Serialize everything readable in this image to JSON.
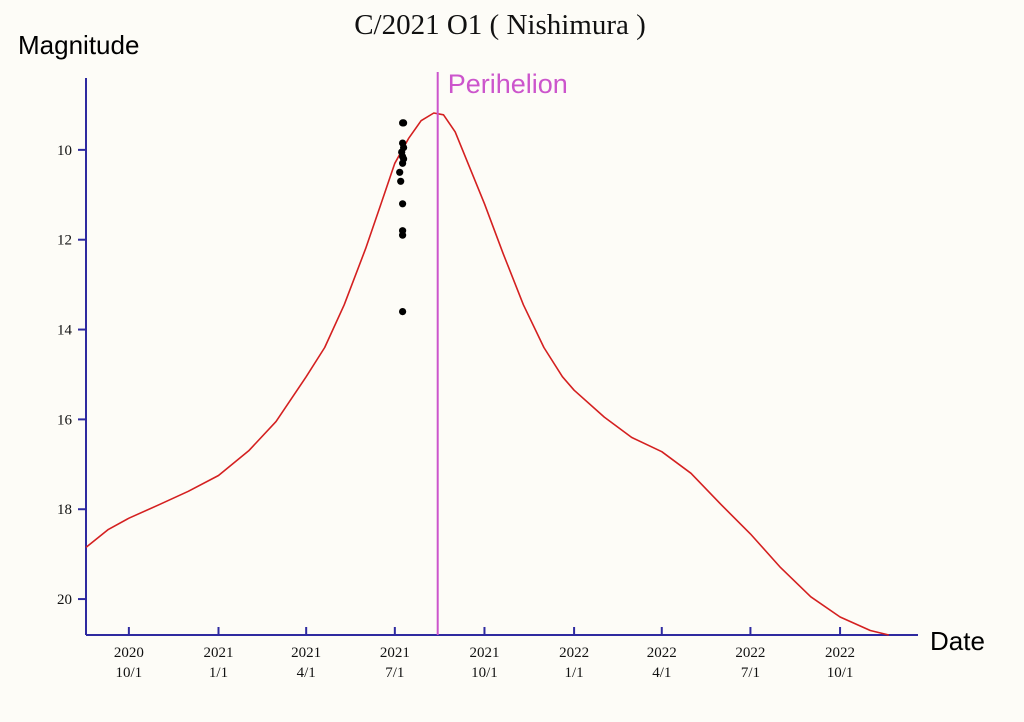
{
  "chart_data": {
    "type": "line",
    "title": "C/2021 O1 ( Nishimura )",
    "ylabel": "Magnitude",
    "xlabel": "Date",
    "y_inverted": true,
    "ylim": [
      8.4,
      20.8
    ],
    "yticks": [
      10,
      12,
      14,
      16,
      18,
      20
    ],
    "xlim": [
      "2020-08-18",
      "2022-12-20"
    ],
    "xticks": [
      {
        "date": "2020-10-01",
        "line1": "2020",
        "line2": "10/1"
      },
      {
        "date": "2021-01-01",
        "line1": "2021",
        "line2": "1/1"
      },
      {
        "date": "2021-04-01",
        "line1": "2021",
        "line2": "4/1"
      },
      {
        "date": "2021-07-01",
        "line1": "2021",
        "line2": "7/1"
      },
      {
        "date": "2021-10-01",
        "line1": "2021",
        "line2": "10/1"
      },
      {
        "date": "2022-01-01",
        "line1": "2022",
        "line2": "1/1"
      },
      {
        "date": "2022-04-01",
        "line1": "2022",
        "line2": "4/1"
      },
      {
        "date": "2022-07-01",
        "line1": "2022",
        "line2": "7/1"
      },
      {
        "date": "2022-10-01",
        "line1": "2022",
        "line2": "10/1"
      }
    ],
    "perihelion": {
      "label": "Perihelion",
      "date": "2021-08-14"
    },
    "series": [
      {
        "kind": "predicted-curve",
        "color": "#d42020",
        "points": [
          {
            "x": "2020-08-18",
            "y": 18.85
          },
          {
            "x": "2020-09-10",
            "y": 18.45
          },
          {
            "x": "2020-10-01",
            "y": 18.2
          },
          {
            "x": "2020-11-01",
            "y": 17.9
          },
          {
            "x": "2020-12-01",
            "y": 17.6
          },
          {
            "x": "2021-01-01",
            "y": 17.25
          },
          {
            "x": "2021-02-01",
            "y": 16.7
          },
          {
            "x": "2021-03-01",
            "y": 16.05
          },
          {
            "x": "2021-04-01",
            "y": 15.05
          },
          {
            "x": "2021-04-20",
            "y": 14.4
          },
          {
            "x": "2021-05-10",
            "y": 13.45
          },
          {
            "x": "2021-06-01",
            "y": 12.2
          },
          {
            "x": "2021-06-20",
            "y": 11.0
          },
          {
            "x": "2021-07-01",
            "y": 10.3
          },
          {
            "x": "2021-07-15",
            "y": 9.75
          },
          {
            "x": "2021-07-28",
            "y": 9.35
          },
          {
            "x": "2021-08-10",
            "y": 9.18
          },
          {
            "x": "2021-08-20",
            "y": 9.22
          },
          {
            "x": "2021-09-01",
            "y": 9.6
          },
          {
            "x": "2021-09-15",
            "y": 10.35
          },
          {
            "x": "2021-10-01",
            "y": 11.2
          },
          {
            "x": "2021-10-20",
            "y": 12.3
          },
          {
            "x": "2021-11-10",
            "y": 13.45
          },
          {
            "x": "2021-12-01",
            "y": 14.4
          },
          {
            "x": "2021-12-20",
            "y": 15.05
          },
          {
            "x": "2022-01-01",
            "y": 15.35
          },
          {
            "x": "2022-02-01",
            "y": 15.95
          },
          {
            "x": "2022-03-01",
            "y": 16.4
          },
          {
            "x": "2022-04-01",
            "y": 16.72
          },
          {
            "x": "2022-05-01",
            "y": 17.2
          },
          {
            "x": "2022-06-01",
            "y": 17.9
          },
          {
            "x": "2022-07-01",
            "y": 18.55
          },
          {
            "x": "2022-08-01",
            "y": 19.3
          },
          {
            "x": "2022-09-01",
            "y": 19.95
          },
          {
            "x": "2022-10-01",
            "y": 20.4
          },
          {
            "x": "2022-11-01",
            "y": 20.7
          },
          {
            "x": "2022-11-20",
            "y": 20.8
          }
        ]
      },
      {
        "kind": "observations",
        "color": "#000000",
        "points": [
          {
            "x": "2021-07-09",
            "y": 9.4
          },
          {
            "x": "2021-07-10",
            "y": 9.4
          },
          {
            "x": "2021-07-09",
            "y": 9.85
          },
          {
            "x": "2021-07-10",
            "y": 9.95
          },
          {
            "x": "2021-07-08",
            "y": 10.05
          },
          {
            "x": "2021-07-09",
            "y": 10.15
          },
          {
            "x": "2021-07-10",
            "y": 10.2
          },
          {
            "x": "2021-07-09",
            "y": 10.3
          },
          {
            "x": "2021-07-06",
            "y": 10.5
          },
          {
            "x": "2021-07-07",
            "y": 10.7
          },
          {
            "x": "2021-07-09",
            "y": 11.2
          },
          {
            "x": "2021-07-09",
            "y": 11.8
          },
          {
            "x": "2021-07-09",
            "y": 11.9
          },
          {
            "x": "2021-07-09",
            "y": 13.6
          }
        ]
      }
    ],
    "colors": {
      "axis": "#2e2aa0",
      "perihelion": "#cc55cc",
      "background": "#fdfcf7"
    }
  }
}
